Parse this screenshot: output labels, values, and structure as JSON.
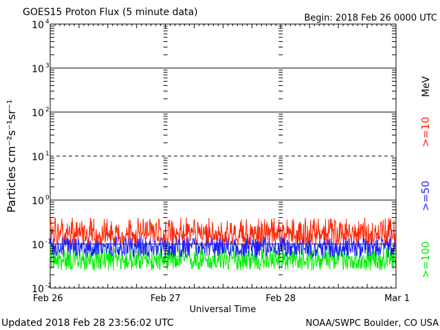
{
  "chart_data": {
    "type": "line",
    "title": "GOES15 Proton Flux (5 minute data)",
    "begin_label": "Begin: 2018 Feb 26 0000 UTC",
    "xlabel": "Universal Time",
    "ylabel": "Particles cm⁻²s⁻¹sr⁻¹",
    "yscale": "log",
    "ylim": [
      0.01,
      10000
    ],
    "y_ticks": [
      {
        "base": "10",
        "exp": "4"
      },
      {
        "base": "10",
        "exp": "3"
      },
      {
        "base": "10",
        "exp": "2"
      },
      {
        "base": "10",
        "exp": "1"
      },
      {
        "base": "10",
        "exp": "0"
      },
      {
        "base": "10",
        "exp": "-1"
      },
      {
        "base": "10",
        "exp": "-2"
      }
    ],
    "x_ticks": [
      "Feb 26",
      "Feb 27",
      "Feb 28",
      "Mar 1"
    ],
    "x_range_days": [
      "2018-02-26",
      "2018-03-01"
    ],
    "grid": "solid lines at 10^3, 10^2, 10^0, 10^-1; dashed line at 10^1",
    "series": [
      {
        "name": ">=10",
        "color": "#ff2200",
        "baseline": 0.17,
        "min": 0.1,
        "max": 0.4
      },
      {
        "name": ">=50",
        "color": "#1e1eff",
        "baseline": 0.09,
        "min": 0.05,
        "max": 0.15
      },
      {
        "name": ">=100",
        "color": "#00ee00",
        "baseline": 0.045,
        "min": 0.025,
        "max": 0.09
      }
    ],
    "series_unit": "MeV"
  },
  "footer": {
    "updated": "Updated 2018 Feb 28 23:56:02 UTC",
    "source": "NOAA/SWPC Boulder, CO USA"
  }
}
